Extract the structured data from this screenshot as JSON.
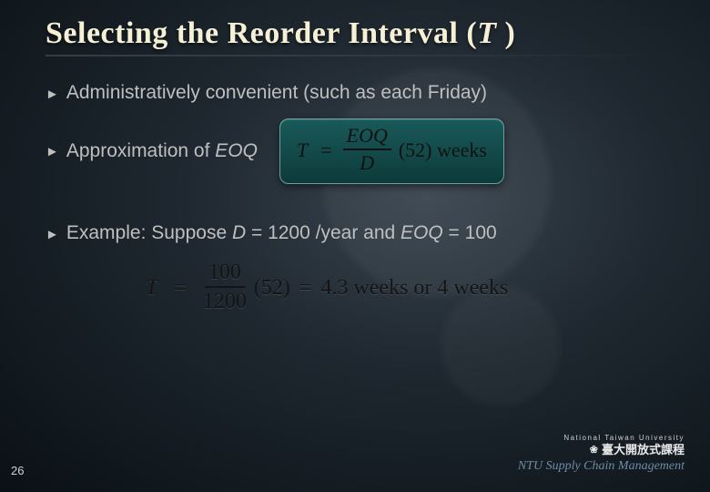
{
  "title_prefix": "Selecting the Reorder Interval (",
  "title_var": "T",
  "title_suffix": " )",
  "bullets": {
    "b1": "Administratively convenient (such as each Friday)",
    "b2_prefix": "Approximation of ",
    "b2_em": "EOQ",
    "b3_prefix": "Example: Suppose ",
    "b3_d": "D",
    "b3_mid": " = 1200 /year and ",
    "b3_eoq": "EOQ",
    "b3_suffix": " = 100"
  },
  "formula_box": {
    "lhs": "T",
    "eq": "=",
    "num": "EOQ",
    "den": "D",
    "tail": "(52) weeks"
  },
  "example_formula": {
    "lhs": "T",
    "eq": "=",
    "num": "100",
    "den": "1200",
    "mid": "(52)",
    "eq2": "=",
    "result": "4.3 weeks or 4 weeks"
  },
  "footer": {
    "uni": "National Taiwan University",
    "ocw": "臺大開放式課程",
    "scm": "NTU Supply Chain Management"
  },
  "page_num": "26"
}
